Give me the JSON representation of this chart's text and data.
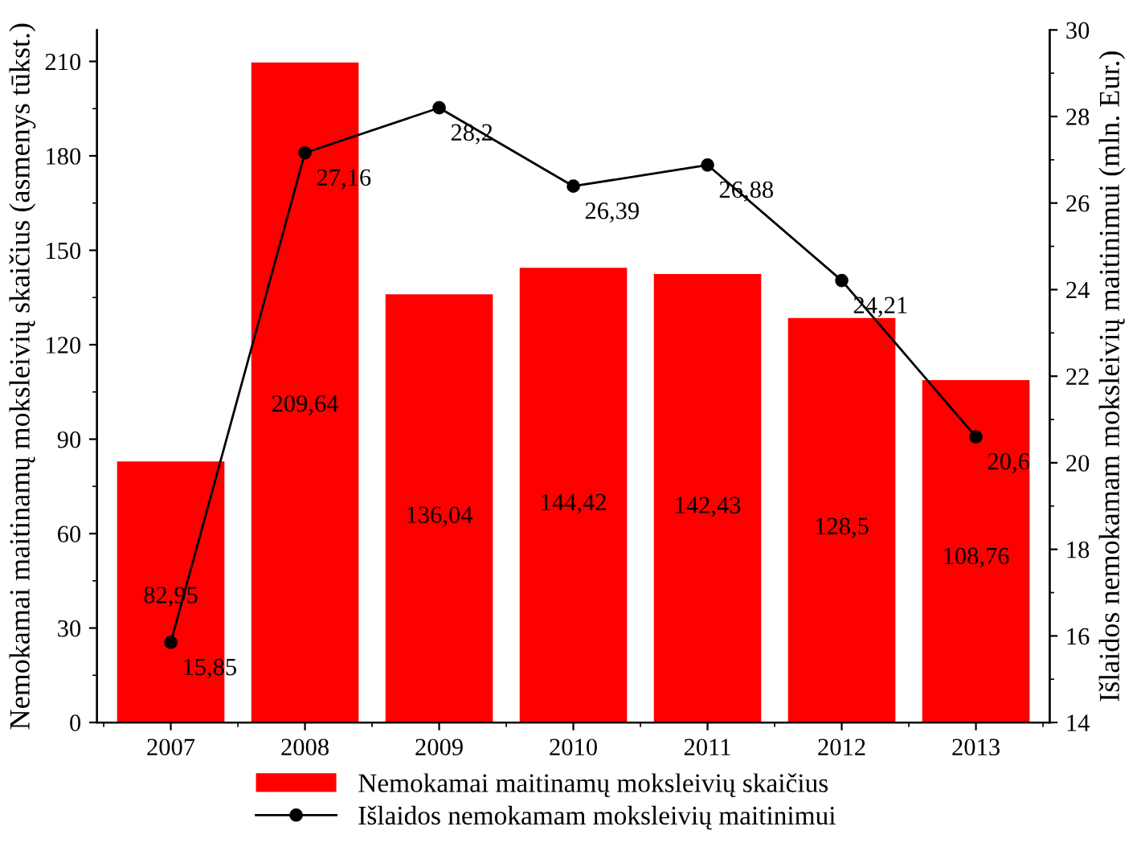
{
  "chart_data": {
    "type": "bar",
    "categories": [
      "2007",
      "2008",
      "2009",
      "2010",
      "2011",
      "2012",
      "2013"
    ],
    "series": [
      {
        "name": "Nemokamai maitinamų moksleivių skaičius",
        "color": "#ff0000",
        "values": [
          82.95,
          209.64,
          136.04,
          144.42,
          142.43,
          128.5,
          108.76
        ],
        "value_labels": [
          "82,95",
          "209,64",
          "136,04",
          "144,42",
          "142,43",
          "128,5",
          "108,76"
        ]
      },
      {
        "name": "Išlaidos nemokamam moksleivių maitinimui",
        "type": "line",
        "axis": "y2",
        "color": "#000000",
        "marker": "circle",
        "line_style": "solid",
        "values": [
          15.85,
          27.16,
          28.2,
          26.39,
          26.88,
          24.21,
          20.6
        ],
        "value_labels": [
          "15,85",
          "27,16",
          "28,2",
          "26,39",
          "26,88",
          "24,21",
          "20,6"
        ]
      }
    ],
    "ylabel": "Nemokamai maitinamų moksleivių skaičius (asmenys tūkst.)",
    "y2label": "Išlaidos nemokamam moksleivių maitinimui (mln. Eur.)",
    "ylim": [
      0,
      220
    ],
    "yticks": [
      0,
      30,
      60,
      90,
      120,
      150,
      180,
      210
    ],
    "y2lim": [
      14,
      30
    ],
    "y2ticks": [
      14,
      16,
      18,
      20,
      22,
      24,
      26,
      28,
      30
    ],
    "legend": "bottom",
    "grid": false
  }
}
